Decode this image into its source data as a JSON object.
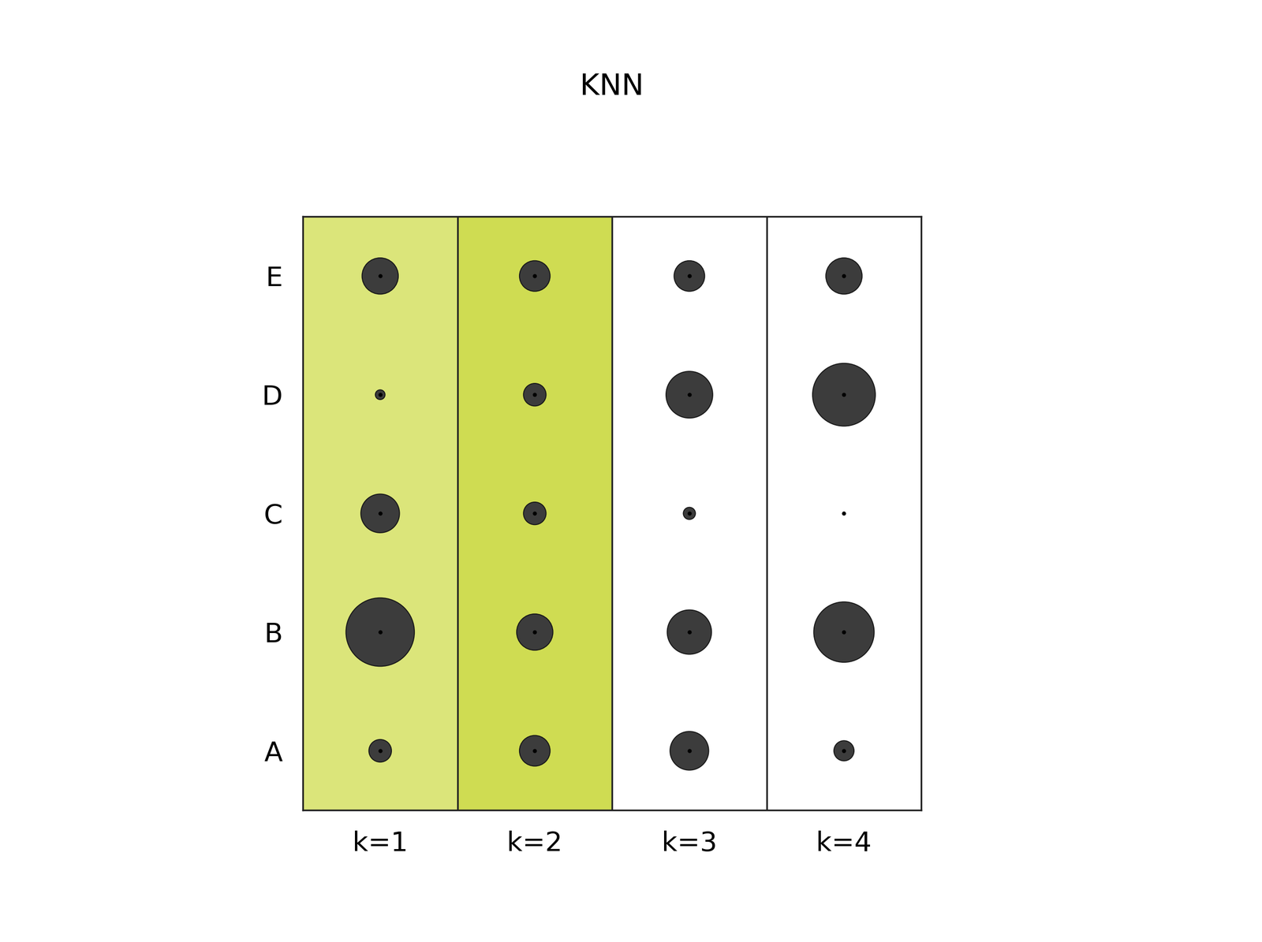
{
  "chart_data": {
    "type": "bubble",
    "title": "KNN",
    "categories": [
      "k=1",
      "k=2",
      "k=3",
      "k=4"
    ],
    "row_labels": [
      "A",
      "B",
      "C",
      "D",
      "E"
    ],
    "sizes": [
      [
        28,
        85,
        48,
        12,
        45
      ],
      [
        38,
        45,
        28,
        28,
        38
      ],
      [
        48,
        55,
        15,
        58,
        38
      ],
      [
        25,
        75,
        3,
        78,
        45
      ]
    ],
    "column_colors": [
      "#dbe57a",
      "#cfdc52",
      "#ffffff",
      "#ffffff"
    ],
    "color": "#3c3c3c",
    "grid": false,
    "tick_labels": true
  }
}
